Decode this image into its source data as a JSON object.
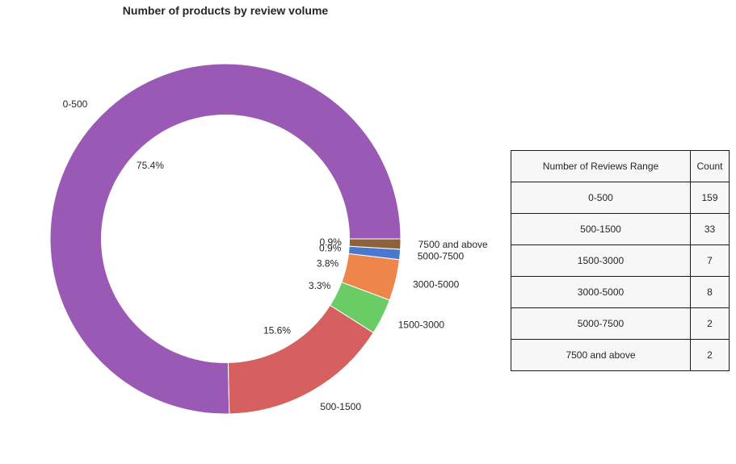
{
  "chart_data": {
    "type": "pie",
    "variant": "donut",
    "title": "Number of products by review volume",
    "categories": [
      "0-500",
      "500-1500",
      "1500-3000",
      "3000-5000",
      "5000-7500",
      "7500 and above"
    ],
    "values": [
      159,
      33,
      7,
      8,
      2,
      2
    ],
    "percent_labels": [
      "75.4%",
      "15.6%",
      "3.3%",
      "3.8%",
      "0.9%",
      "0.9%"
    ],
    "colors": [
      "#9b59b6",
      "#d65f5f",
      "#6acc64",
      "#ee854a",
      "#4878d0",
      "#8c613c"
    ],
    "start_angle_deg": 0,
    "direction": "counterclockwise"
  },
  "table": {
    "headers": [
      "Number of Reviews Range",
      "Count"
    ],
    "rows": [
      [
        "0-500",
        "159"
      ],
      [
        "500-1500",
        "33"
      ],
      [
        "1500-3000",
        "7"
      ],
      [
        "3000-5000",
        "8"
      ],
      [
        "5000-7500",
        "2"
      ],
      [
        "7500 and above",
        "2"
      ]
    ]
  }
}
